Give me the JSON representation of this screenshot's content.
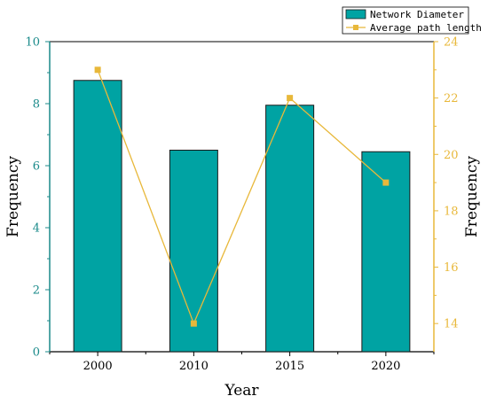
{
  "chart_data": {
    "type": "bar+line",
    "categories": [
      "2000",
      "2010",
      "2015",
      "2020"
    ],
    "series": [
      {
        "name": "Network Diameter",
        "type": "bar",
        "axis": "left",
        "values": [
          8.75,
          6.5,
          7.95,
          6.45
        ]
      },
      {
        "name": "Average path length",
        "type": "line",
        "axis": "right",
        "values": [
          23,
          14,
          22,
          19
        ]
      }
    ],
    "xlabel": "Year",
    "ylabel": "Frequency",
    "y2label": "Frequency",
    "ylim": [
      0,
      10
    ],
    "y2lim": [
      13,
      24
    ],
    "yticks": [
      0,
      2,
      4,
      6,
      8,
      10
    ],
    "y2ticks": [
      14,
      16,
      18,
      20,
      22,
      24
    ],
    "legend_position": "top-right",
    "colors": {
      "bar_fill": "#00A3A3",
      "bar_stroke": "#1a1a1a",
      "line": "#E8B83A",
      "left_axis": "#1a8a8a",
      "right_axis": "#E8B83A"
    }
  }
}
